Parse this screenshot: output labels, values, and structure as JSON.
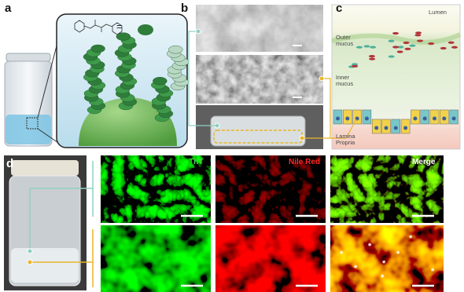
{
  "panels": {
    "a": {
      "label": "a",
      "equals": "="
    },
    "b": {
      "label": "b"
    },
    "c": {
      "label": "c",
      "regions": [
        "Lumen",
        "Outer mucus",
        "Inner mucus",
        "Lamina Propria"
      ]
    },
    "d": {
      "label": "d",
      "channels": [
        "ThT",
        "Nile Red",
        "Merge"
      ],
      "markers": [
        "*",
        "*",
        "*",
        "*",
        "*",
        "*",
        "*",
        "*"
      ]
    }
  }
}
